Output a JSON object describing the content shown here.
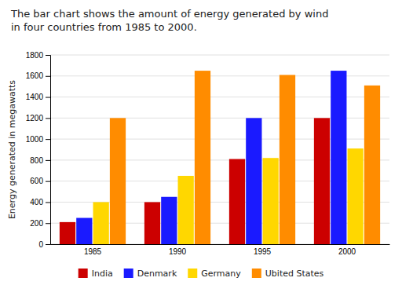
{
  "chart_data": {
    "type": "bar",
    "title": "The bar chart shows the amount of energy generated by wind\nin four countries from 1985 to 2000.",
    "ylabel": "Energy generated in megawatts",
    "categories": [
      "1985",
      "1990",
      "1995",
      "2000"
    ],
    "series": [
      {
        "name": "India",
        "color": "#CC0000",
        "values": [
          210,
          400,
          810,
          1200
        ]
      },
      {
        "name": "Denmark",
        "color": "#1a1aff",
        "values": [
          250,
          450,
          1200,
          1650
        ]
      },
      {
        "name": "Germany",
        "color": "#FFD700",
        "values": [
          400,
          650,
          820,
          910
        ]
      },
      {
        "name": "Ubited States",
        "color": "#FF8C00",
        "values": [
          1200,
          1650,
          1610,
          1510
        ]
      }
    ],
    "ylim": [
      0,
      1800
    ],
    "yticks": [
      0,
      200,
      400,
      600,
      800,
      1000,
      1200,
      1400,
      1600,
      1800
    ],
    "grid": true,
    "legend": "bottom"
  }
}
